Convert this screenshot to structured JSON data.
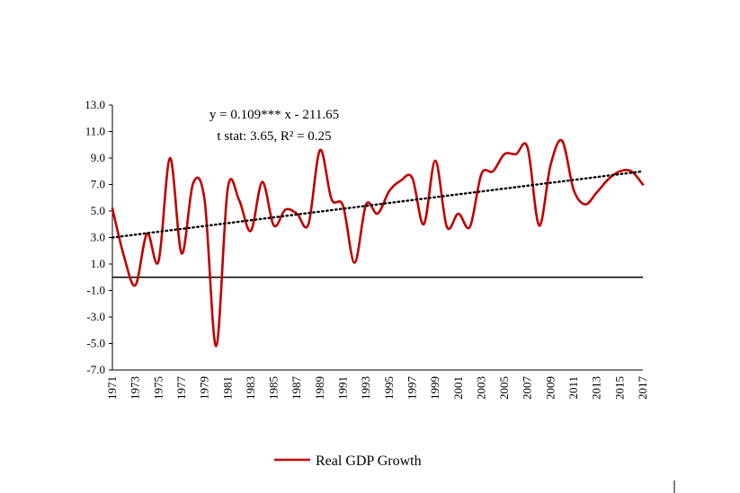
{
  "chart_data": {
    "type": "line",
    "title": "",
    "xlabel": "",
    "ylabel": "",
    "ylim": [
      -7.0,
      13.0
    ],
    "y_ticks": [
      "13.0",
      "11.0",
      "9.0",
      "7.0",
      "5.0",
      "3.0",
      "1.0",
      "-1.0",
      "-3.0",
      "-5.0",
      "-7.0"
    ],
    "x_tick_labels": [
      "1971",
      "1973",
      "1975",
      "1977",
      "1979",
      "1981",
      "1983",
      "1985",
      "1987",
      "1989",
      "1991",
      "1993",
      "1995",
      "1997",
      "1999",
      "2001",
      "2003",
      "2005",
      "2007",
      "2009",
      "2011",
      "2013",
      "2015",
      "2017"
    ],
    "x": [
      1971,
      1972,
      1973,
      1974,
      1975,
      1976,
      1977,
      1978,
      1979,
      1980,
      1981,
      1982,
      1983,
      1984,
      1985,
      1986,
      1987,
      1988,
      1989,
      1990,
      1991,
      1992,
      1993,
      1994,
      1995,
      1996,
      1997,
      1998,
      1999,
      2000,
      2001,
      2002,
      2003,
      2004,
      2005,
      2006,
      2007,
      2008,
      2009,
      2010,
      2011,
      2012,
      2013,
      2014,
      2015,
      2016,
      2017
    ],
    "series": [
      {
        "name": "Real GDP Growth",
        "values": [
          5.2,
          1.6,
          -0.6,
          3.3,
          1.2,
          9.0,
          1.8,
          7.1,
          5.8,
          -5.2,
          6.7,
          5.8,
          3.5,
          7.2,
          3.9,
          5.1,
          4.8,
          4.0,
          9.6,
          5.9,
          5.4,
          1.1,
          5.5,
          4.8,
          6.5,
          7.3,
          7.5,
          4.0,
          8.8,
          3.8,
          4.8,
          3.8,
          7.8,
          8.0,
          9.3,
          9.3,
          9.8,
          3.9,
          8.5,
          10.3,
          6.6,
          5.5,
          6.4,
          7.4,
          8.0,
          8.0,
          7.0
        ],
        "color": "#c00000"
      },
      {
        "name": "",
        "type": "trendline",
        "x": [
          1971,
          2017
        ],
        "values": [
          3.0,
          8.0
        ],
        "color": "#000000"
      }
    ],
    "annotations": [
      "y = 0.109*** x - 211.65",
      "t stat: 3.65,  R² = 0.25"
    ],
    "legend": {
      "placement": "bottom",
      "entries": [
        "Real GDP Growth"
      ]
    },
    "grid": false,
    "zero_line": true
  }
}
